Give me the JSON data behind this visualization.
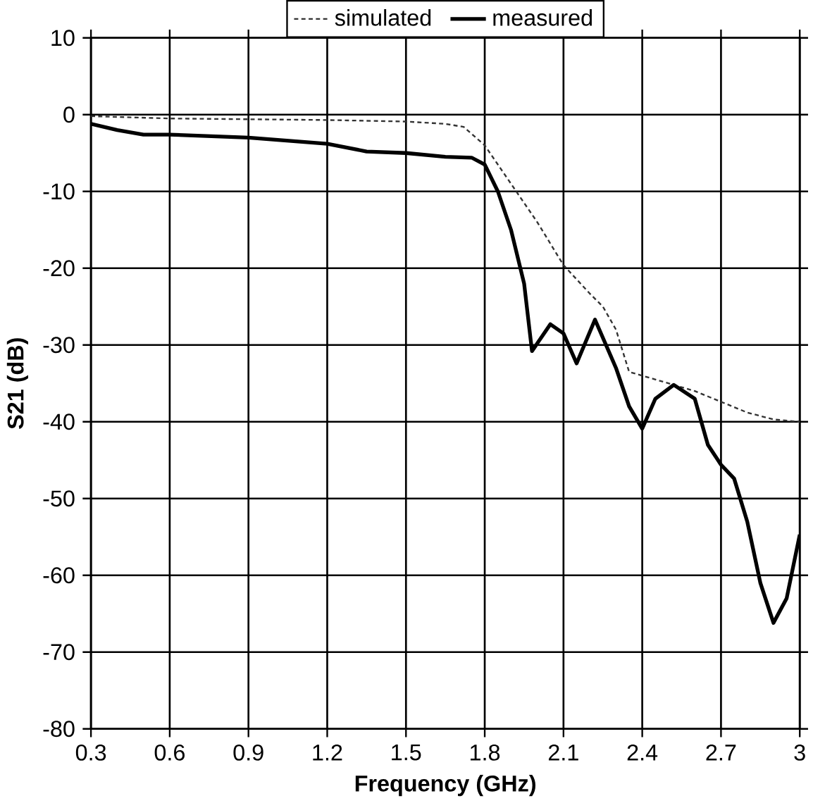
{
  "chart_data": {
    "type": "line",
    "xlabel": "Frequency (GHz)",
    "ylabel": "S21 (dB)",
    "xlim": [
      0.3,
      3
    ],
    "xticks": [
      {
        "value": 0.3,
        "label": "0.3"
      },
      {
        "value": 0.6,
        "label": "0.6"
      },
      {
        "value": 0.9,
        "label": "0.9"
      },
      {
        "value": 1.2,
        "label": "1.2"
      },
      {
        "value": 1.5,
        "label": "1.5"
      },
      {
        "value": 1.8,
        "label": "1.8"
      },
      {
        "value": 2.1,
        "label": "2.1"
      },
      {
        "value": 2.4,
        "label": "2.4"
      },
      {
        "value": 2.7,
        "label": "2.7"
      },
      {
        "value": 3,
        "label": "3"
      }
    ],
    "ylim": [
      -80,
      10
    ],
    "yticks": [
      -80,
      -70,
      -60,
      -50,
      -40,
      -30,
      -20,
      -10,
      0,
      10
    ],
    "grid": true,
    "legend": "top",
    "marker": "none",
    "series": [
      {
        "name": "simulated",
        "color": "#333333",
        "line_style": "dashed",
        "x": [
          0.3,
          0.6,
          0.9,
          1.2,
          1.5,
          1.65,
          1.72,
          1.8,
          1.9,
          2.0,
          2.1,
          2.2,
          2.25,
          2.3,
          2.35,
          2.4,
          2.5,
          2.6,
          2.7,
          2.8,
          2.9,
          3.0
        ],
        "values": [
          -0.2,
          -0.5,
          -0.6,
          -0.7,
          -0.9,
          -1.2,
          -1.6,
          -4,
          -9,
          -14,
          -19.6,
          -23.3,
          -25,
          -28,
          -33.5,
          -34,
          -35,
          -36,
          -37.4,
          -38.8,
          -39.7,
          -40
        ]
      },
      {
        "name": "measured",
        "color": "#000000",
        "line_style": "solid",
        "x": [
          0.3,
          0.4,
          0.5,
          0.6,
          0.9,
          1.2,
          1.35,
          1.5,
          1.65,
          1.75,
          1.8,
          1.85,
          1.9,
          1.95,
          1.98,
          2.05,
          2.1,
          2.15,
          2.22,
          2.3,
          2.35,
          2.4,
          2.45,
          2.52,
          2.6,
          2.65,
          2.7,
          2.75,
          2.8,
          2.85,
          2.9,
          2.95,
          3.0
        ],
        "values": [
          -1.2,
          -2,
          -2.6,
          -2.6,
          -3,
          -3.8,
          -4.8,
          -5,
          -5.5,
          -5.6,
          -6.5,
          -10,
          -15,
          -22,
          -30.8,
          -27.3,
          -28.5,
          -32.4,
          -26.7,
          -33,
          -38,
          -40.9,
          -37,
          -35.2,
          -37,
          -43,
          -45.6,
          -47.4,
          -53,
          -61,
          -66.2,
          -63,
          -54.7
        ]
      }
    ]
  }
}
